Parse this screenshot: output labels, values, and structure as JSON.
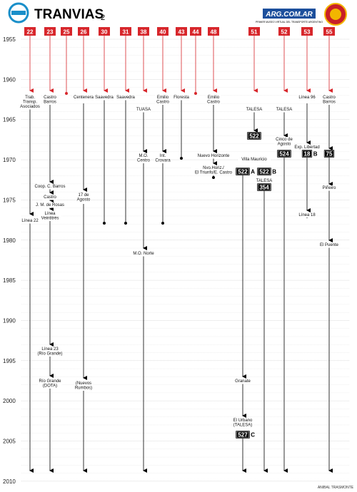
{
  "header": {
    "title": "TRANVIAS",
    "volume": "2",
    "site": "ARG.COM.AR",
    "site_tagline": "PRIMER MUSEO VIRTUAL DEL TRANSPORTE ARGENTINO"
  },
  "years": [
    "1955",
    "1960",
    "1965",
    "1970",
    "1975",
    "1980",
    "1985",
    "1990",
    "1995",
    "2000",
    "2005",
    "2010"
  ],
  "routes": [
    "22",
    "23",
    "25",
    "26",
    "30",
    "31",
    "38",
    "40",
    "43",
    "44",
    "48",
    "51",
    "52",
    "53",
    "55"
  ],
  "labels": [
    [
      "Trab.",
      "Transp.",
      "Asociados"
    ],
    [
      "Castro",
      "Barros"
    ],
    [
      "Centenera"
    ],
    [
      "Saavedra"
    ],
    [
      "Saavedra"
    ],
    [
      "TUASA"
    ],
    [
      "Emilio",
      "Castro"
    ],
    [
      "Floresta"
    ],
    [
      "Emilio",
      "Castro"
    ],
    [
      "TALESA"
    ],
    [
      "TALESA"
    ],
    [
      "Línea 96"
    ],
    [
      "Castro",
      "Barros"
    ],
    [
      "Cinco de",
      "Agosto"
    ],
    [
      "Exp. Libertad"
    ],
    [
      "M.O.",
      "Centro"
    ],
    [
      "Int.",
      "Crovara"
    ],
    [
      "Nuevo Horizonte"
    ],
    [
      "Villa Mauricio"
    ],
    [
      "Nvo.Horiz./",
      "El Triunfo/E. Castro"
    ],
    [
      "TALESA"
    ],
    [
      "Piñeiro"
    ],
    [
      "Coop. C. Barros"
    ],
    [
      "17 de",
      "Agosto"
    ],
    [
      "Castro"
    ],
    [
      "J. M. de Rosas"
    ],
    [
      "Línea",
      "Veintitrés"
    ],
    [
      "Línea 18"
    ],
    [
      "Línea 22"
    ],
    [
      "El Puente"
    ],
    [
      "M.O. Norte"
    ],
    [
      "Línea 23",
      "(Río Grande)"
    ],
    [
      "Río Grande",
      "(DOTA)"
    ],
    [
      "(Nuevos",
      "Rumbos)"
    ],
    [
      "Granate"
    ],
    [
      "El Urbano",
      "(TALESA)"
    ]
  ],
  "badges": [
    {
      "number": "522"
    },
    {
      "number": "524"
    },
    {
      "number": "18",
      "suffix": "B"
    },
    {
      "number": "75"
    },
    {
      "number": "522",
      "suffix": "A"
    },
    {
      "number": "522",
      "suffix": "B"
    },
    {
      "number": "354"
    },
    {
      "number": "527",
      "suffix": "C"
    }
  ],
  "footer": "ANIBAL TRASMONTE"
}
